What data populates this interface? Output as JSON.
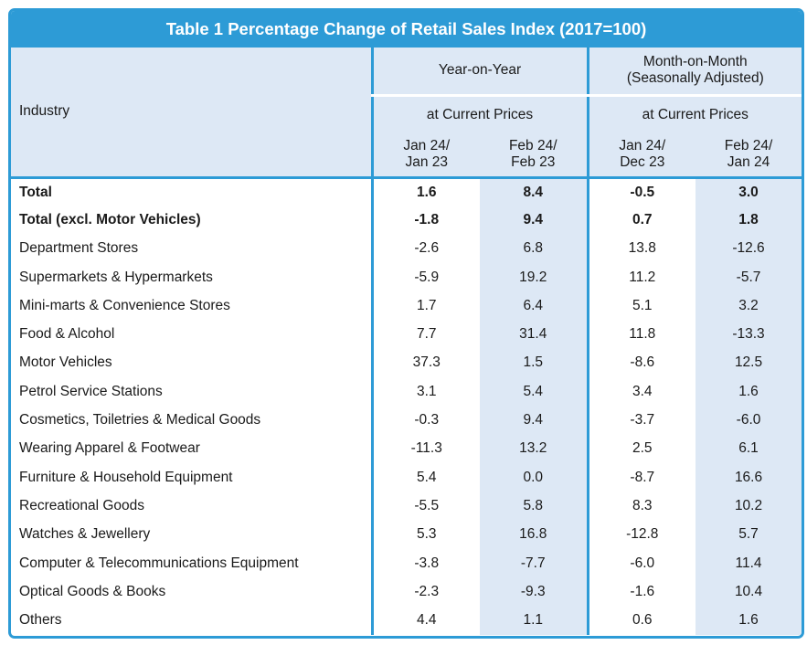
{
  "table": {
    "title": "Table 1 Percentage Change of Retail Sales Index (2017=100)",
    "industry_label": "Industry",
    "groups": {
      "yoy": "Year-on-Year",
      "mom_line1": "Month-on-Month",
      "mom_line2": "(Seasonally Adjusted)"
    },
    "subheads": {
      "yoy": "at Current Prices",
      "mom": "at Current Prices"
    },
    "periods": [
      {
        "line1": "Jan 24/",
        "line2": "Jan 23"
      },
      {
        "line1": "Feb 24/",
        "line2": "Feb 23"
      },
      {
        "line1": "Jan 24/",
        "line2": "Dec 23"
      },
      {
        "line1": "Feb 24/",
        "line2": "Jan 24"
      }
    ],
    "rows": [
      {
        "industry": "Total",
        "values": [
          "1.6",
          "8.4",
          "-0.5",
          "3.0"
        ],
        "bold": true
      },
      {
        "industry": "Total (excl. Motor Vehicles)",
        "values": [
          "-1.8",
          "9.4",
          "0.7",
          "1.8"
        ],
        "bold": true
      },
      {
        "industry": "Department Stores",
        "values": [
          "-2.6",
          "6.8",
          "13.8",
          "-12.6"
        ]
      },
      {
        "industry": "Supermarkets & Hypermarkets",
        "values": [
          "-5.9",
          "19.2",
          "11.2",
          "-5.7"
        ]
      },
      {
        "industry": "Mini-marts & Convenience Stores",
        "values": [
          "1.7",
          "6.4",
          "5.1",
          "3.2"
        ]
      },
      {
        "industry": "Food & Alcohol",
        "values": [
          "7.7",
          "31.4",
          "11.8",
          "-13.3"
        ]
      },
      {
        "industry": "Motor Vehicles",
        "values": [
          "37.3",
          "1.5",
          "-8.6",
          "12.5"
        ]
      },
      {
        "industry": "Petrol Service Stations",
        "values": [
          "3.1",
          "5.4",
          "3.4",
          "1.6"
        ]
      },
      {
        "industry": "Cosmetics, Toiletries & Medical Goods",
        "values": [
          "-0.3",
          "9.4",
          "-3.7",
          "-6.0"
        ]
      },
      {
        "industry": "Wearing Apparel & Footwear",
        "values": [
          "-11.3",
          "13.2",
          "2.5",
          "6.1"
        ]
      },
      {
        "industry": "Furniture & Household Equipment",
        "values": [
          "5.4",
          "0.0",
          "-8.7",
          "16.6"
        ]
      },
      {
        "industry": "Recreational Goods",
        "values": [
          "-5.5",
          "5.8",
          "8.3",
          "10.2"
        ]
      },
      {
        "industry": "Watches & Jewellery",
        "values": [
          "5.3",
          "16.8",
          "-12.8",
          "5.7"
        ]
      },
      {
        "industry": "Computer & Telecommunications Equipment",
        "values": [
          "-3.8",
          "-7.7",
          "-6.0",
          "11.4"
        ]
      },
      {
        "industry": "Optical Goods & Books",
        "values": [
          "-2.3",
          "-9.3",
          "-1.6",
          "10.4"
        ]
      },
      {
        "industry": "Others",
        "values": [
          "4.4",
          "1.1",
          "0.6",
          "1.6"
        ]
      }
    ]
  },
  "colors": {
    "accent": "#2d9bd6",
    "header_fill": "#dde8f5"
  }
}
